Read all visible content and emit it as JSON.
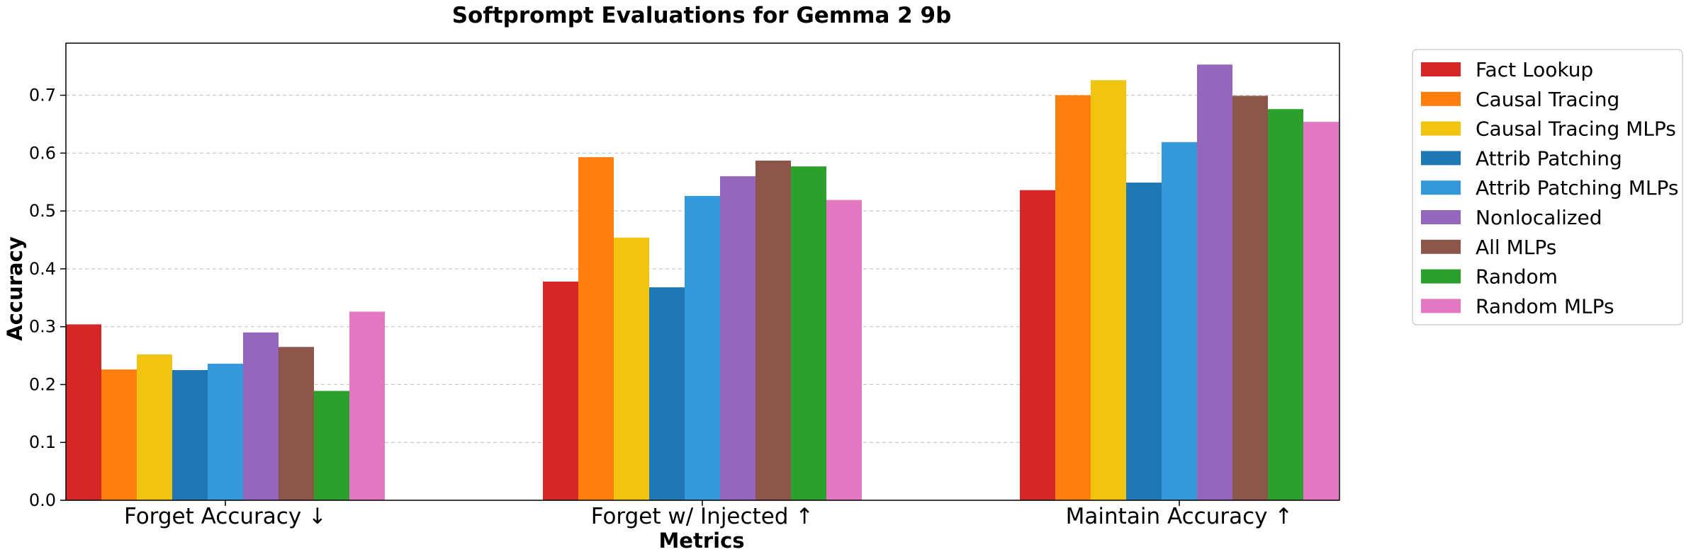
{
  "chart_data": {
    "type": "bar",
    "title": "Softprompt Evaluations for Gemma 2 9b",
    "xlabel": "Metrics",
    "ylabel": "Accuracy",
    "categories": [
      "Forget Accuracy ↓",
      "Forget w/ Injected ↑",
      "Maintain Accuracy ↑"
    ],
    "ylim": [
      0,
      0.79
    ],
    "yticks": [
      "0.0",
      "0.1",
      "0.2",
      "0.3",
      "0.4",
      "0.5",
      "0.6",
      "0.7"
    ],
    "grid": "y-dashed",
    "legend_position": "outside-right",
    "series": [
      {
        "name": "Fact Lookup",
        "color": "#d62728",
        "values": [
          0.304,
          0.378,
          0.536
        ]
      },
      {
        "name": "Causal Tracing",
        "color": "#ff7f0e",
        "values": [
          0.226,
          0.593,
          0.7
        ]
      },
      {
        "name": "Causal Tracing MLPs",
        "color": "#f1c40f",
        "values": [
          0.252,
          0.454,
          0.726
        ]
      },
      {
        "name": "Attrib Patching",
        "color": "#1f77b4",
        "values": [
          0.225,
          0.368,
          0.549
        ]
      },
      {
        "name": "Attrib Patching MLPs",
        "color": "#3498db",
        "values": [
          0.236,
          0.526,
          0.619
        ]
      },
      {
        "name": "Nonlocalized",
        "color": "#9467bd",
        "values": [
          0.29,
          0.56,
          0.753
        ]
      },
      {
        "name": "All MLPs",
        "color": "#8c564b",
        "values": [
          0.265,
          0.587,
          0.699
        ]
      },
      {
        "name": "Random",
        "color": "#2ca02c",
        "values": [
          0.189,
          0.577,
          0.676
        ]
      },
      {
        "name": "Random MLPs",
        "color": "#e377c2",
        "values": [
          0.326,
          0.519,
          0.654
        ]
      }
    ]
  }
}
